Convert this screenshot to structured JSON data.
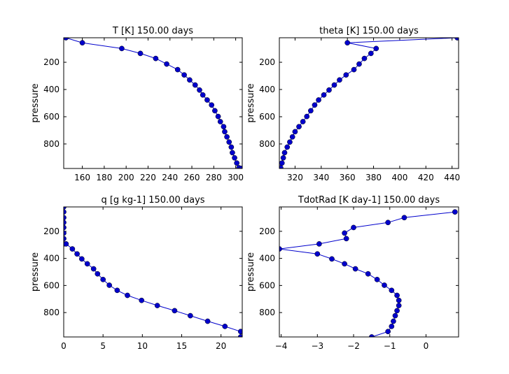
{
  "chart_data": [
    {
      "type": "line",
      "title": "T  [K] 150.00 days",
      "xlabel": "",
      "ylabel": "pressure",
      "xlim": [
        143,
        306
      ],
      "ylim": [
        980,
        20
      ],
      "y_inverted": true,
      "xticks": [
        160,
        180,
        200,
        220,
        240,
        260,
        280,
        300
      ],
      "yticks": [
        200,
        400,
        600,
        800
      ],
      "series_color": "#0000cc",
      "grid": false,
      "x": [
        145,
        160,
        196,
        213,
        227,
        237,
        247,
        253,
        258,
        263,
        267,
        270,
        274,
        278,
        281,
        284,
        286,
        289,
        290,
        292,
        294,
        296,
        297,
        299,
        301,
        303,
        305
      ],
      "y": [
        20,
        57,
        99,
        135,
        172,
        213,
        254,
        293,
        330,
        367,
        404,
        440,
        477,
        514,
        556,
        598,
        636,
        673,
        710,
        748,
        786,
        823,
        864,
        902,
        940,
        975,
        980
      ]
    },
    {
      "type": "line",
      "title": "theta  [K] 150.00 days",
      "xlabel": "",
      "ylabel": "pressure",
      "xlim": [
        308,
        445
      ],
      "ylim": [
        980,
        20
      ],
      "y_inverted": true,
      "xticks": [
        320,
        340,
        360,
        380,
        400,
        420,
        440
      ],
      "yticks": [
        200,
        400,
        600,
        800
      ],
      "series_color": "#0000cc",
      "grid": false,
      "x": [
        444,
        360,
        382,
        378,
        373,
        369,
        365,
        359,
        354,
        350,
        346,
        342,
        338,
        335,
        332,
        329,
        326,
        323,
        320,
        318,
        316,
        314,
        312,
        311,
        310,
        309
      ],
      "y": [
        20,
        57,
        99,
        135,
        172,
        213,
        254,
        293,
        330,
        367,
        404,
        440,
        477,
        514,
        556,
        598,
        636,
        673,
        710,
        748,
        786,
        823,
        864,
        902,
        940,
        975
      ]
    },
    {
      "type": "line",
      "title": "q  [g kg-1] 150.00 days",
      "xlabel": "",
      "ylabel": "pressure",
      "xlim": [
        0,
        22.7
      ],
      "ylim": [
        980,
        20
      ],
      "y_inverted": true,
      "xticks": [
        0,
        5,
        10,
        15,
        20
      ],
      "yticks": [
        200,
        400,
        600,
        800
      ],
      "series_color": "#0000cc",
      "grid": false,
      "x": [
        0.0,
        0.0,
        0.0,
        0.0,
        0.0,
        0.0,
        0.0,
        0.0,
        0.3,
        1.1,
        1.7,
        2.3,
        3.0,
        3.8,
        4.3,
        5.0,
        5.8,
        6.8,
        8.1,
        9.9,
        11.9,
        14.1,
        16.1,
        18.3,
        20.5,
        22.5,
        22.5
      ],
      "y": [
        20,
        57,
        99,
        135,
        172,
        213,
        254,
        293,
        293,
        330,
        367,
        404,
        440,
        477,
        514,
        556,
        598,
        636,
        673,
        710,
        748,
        786,
        823,
        864,
        902,
        940,
        980
      ]
    },
    {
      "type": "line",
      "title": "TdotRad  [K day-1] 150.00 days",
      "xlabel": "",
      "ylabel": "pressure",
      "xlim": [
        -4.05,
        0.9
      ],
      "ylim": [
        980,
        20
      ],
      "y_inverted": true,
      "xticks": [
        -4,
        -3,
        -2,
        -1,
        0
      ],
      "yticks": [
        200,
        400,
        600,
        800
      ],
      "series_color": "#0000cc",
      "grid": false,
      "x": [
        0.8,
        -0.6,
        -1.05,
        -2.0,
        -2.25,
        -2.2,
        -2.95,
        -4.05,
        -3.0,
        -2.6,
        -2.25,
        -1.95,
        -1.6,
        -1.35,
        -1.15,
        -0.95,
        -0.8,
        -0.75,
        -0.75,
        -0.8,
        -0.85,
        -0.9,
        -0.95,
        -1.05,
        -1.5
      ],
      "y": [
        57,
        99,
        135,
        172,
        213,
        254,
        293,
        330,
        367,
        404,
        440,
        477,
        514,
        556,
        598,
        636,
        673,
        710,
        748,
        786,
        823,
        864,
        902,
        940,
        980
      ]
    }
  ]
}
